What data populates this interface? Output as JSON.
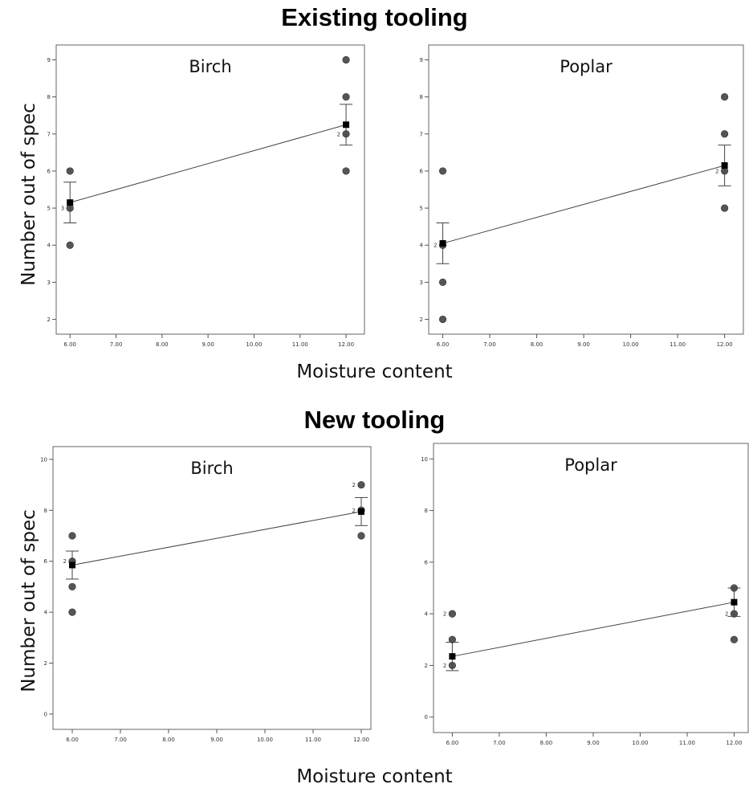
{
  "figure": {
    "sections": [
      {
        "title": "Existing tooling"
      },
      {
        "title": "New tooling"
      }
    ],
    "xlabel": "Moisture content",
    "ylabel": "Number out of spec"
  },
  "chart_data": [
    {
      "type": "scatter",
      "group": "Existing tooling",
      "label": "Birch",
      "xlim": [
        5.7,
        12.4
      ],
      "ylim": [
        1.6,
        9.4
      ],
      "xticks": [
        6,
        7,
        8,
        9,
        10,
        11,
        12
      ],
      "xtick_labels": [
        "6.00",
        "7.00",
        "8.00",
        "9.00",
        "10.00",
        "11.00",
        "12.00"
      ],
      "yticks": [
        2,
        3,
        4,
        5,
        6,
        7,
        8,
        9
      ],
      "ytick_labels": [
        "2",
        "3",
        "4",
        "5",
        "6",
        "7",
        "8",
        "9"
      ],
      "points": [
        {
          "x": 6,
          "y": 4
        },
        {
          "x": 6,
          "y": 5,
          "count": "3"
        },
        {
          "x": 6,
          "y": 6
        },
        {
          "x": 12,
          "y": 6
        },
        {
          "x": 12,
          "y": 7,
          "count": "2"
        },
        {
          "x": 12,
          "y": 8
        },
        {
          "x": 12,
          "y": 9
        }
      ],
      "means": [
        {
          "x": 6,
          "y": 5.15,
          "lo": 4.6,
          "hi": 5.7
        },
        {
          "x": 12,
          "y": 7.25,
          "lo": 6.7,
          "hi": 7.8
        }
      ]
    },
    {
      "type": "scatter",
      "group": "Existing tooling",
      "label": "Poplar",
      "xlim": [
        5.7,
        12.4
      ],
      "ylim": [
        1.6,
        9.4
      ],
      "xticks": [
        6,
        7,
        8,
        9,
        10,
        11,
        12
      ],
      "xtick_labels": [
        "6.00",
        "7.00",
        "8.00",
        "9.00",
        "10.00",
        "11.00",
        "12.00"
      ],
      "yticks": [
        2,
        3,
        4,
        5,
        6,
        7,
        8,
        9
      ],
      "ytick_labels": [
        "2",
        "3",
        "4",
        "5",
        "6",
        "7",
        "8",
        "9"
      ],
      "points": [
        {
          "x": 6,
          "y": 2
        },
        {
          "x": 6,
          "y": 3
        },
        {
          "x": 6,
          "y": 4,
          "count": "2"
        },
        {
          "x": 6,
          "y": 6
        },
        {
          "x": 12,
          "y": 5
        },
        {
          "x": 12,
          "y": 6,
          "count": "2"
        },
        {
          "x": 12,
          "y": 7
        },
        {
          "x": 12,
          "y": 8
        }
      ],
      "means": [
        {
          "x": 6,
          "y": 4.05,
          "lo": 3.5,
          "hi": 4.6
        },
        {
          "x": 12,
          "y": 6.15,
          "lo": 5.6,
          "hi": 6.7
        }
      ]
    },
    {
      "type": "scatter",
      "group": "New tooling",
      "label": "Birch",
      "xlim": [
        5.6,
        12.2
      ],
      "ylim": [
        -0.6,
        10.5
      ],
      "xticks": [
        6,
        7,
        8,
        9,
        10,
        11,
        12
      ],
      "xtick_labels": [
        "6.00",
        "7.00",
        "8.00",
        "9.00",
        "10.00",
        "11.00",
        "12.00"
      ],
      "yticks": [
        0,
        2,
        4,
        6,
        8,
        10
      ],
      "ytick_labels": [
        "0",
        "2",
        "4",
        "6",
        "8",
        "10"
      ],
      "points": [
        {
          "x": 6,
          "y": 4
        },
        {
          "x": 6,
          "y": 5
        },
        {
          "x": 6,
          "y": 6,
          "count": "2"
        },
        {
          "x": 6,
          "y": 7
        },
        {
          "x": 12,
          "y": 7
        },
        {
          "x": 12,
          "y": 8,
          "count": "2"
        },
        {
          "x": 12,
          "y": 9,
          "count": "2"
        }
      ],
      "means": [
        {
          "x": 6,
          "y": 5.85,
          "lo": 5.3,
          "hi": 6.4
        },
        {
          "x": 12,
          "y": 7.95,
          "lo": 7.4,
          "hi": 8.5
        }
      ]
    },
    {
      "type": "scatter",
      "group": "New tooling",
      "label": "Poplar",
      "xlim": [
        5.6,
        12.3
      ],
      "ylim": [
        -0.6,
        10.6
      ],
      "xticks": [
        6,
        7,
        8,
        9,
        10,
        11,
        12
      ],
      "xtick_labels": [
        "6.00",
        "7.00",
        "8.00",
        "9.00",
        "10.00",
        "11.00",
        "12.00"
      ],
      "yticks": [
        0,
        2,
        4,
        6,
        8,
        10
      ],
      "ytick_labels": [
        "0",
        "2",
        "4",
        "6",
        "8",
        "10"
      ],
      "points": [
        {
          "x": 6,
          "y": 2,
          "count": "2"
        },
        {
          "x": 6,
          "y": 3
        },
        {
          "x": 6,
          "y": 4,
          "count": "2"
        },
        {
          "x": 12,
          "y": 3
        },
        {
          "x": 12,
          "y": 4,
          "count": "2"
        },
        {
          "x": 12,
          "y": 5
        }
      ],
      "means": [
        {
          "x": 6,
          "y": 2.35,
          "lo": 1.8,
          "hi": 2.9
        },
        {
          "x": 12,
          "y": 4.45,
          "lo": 3.9,
          "hi": 5.0
        }
      ]
    }
  ]
}
